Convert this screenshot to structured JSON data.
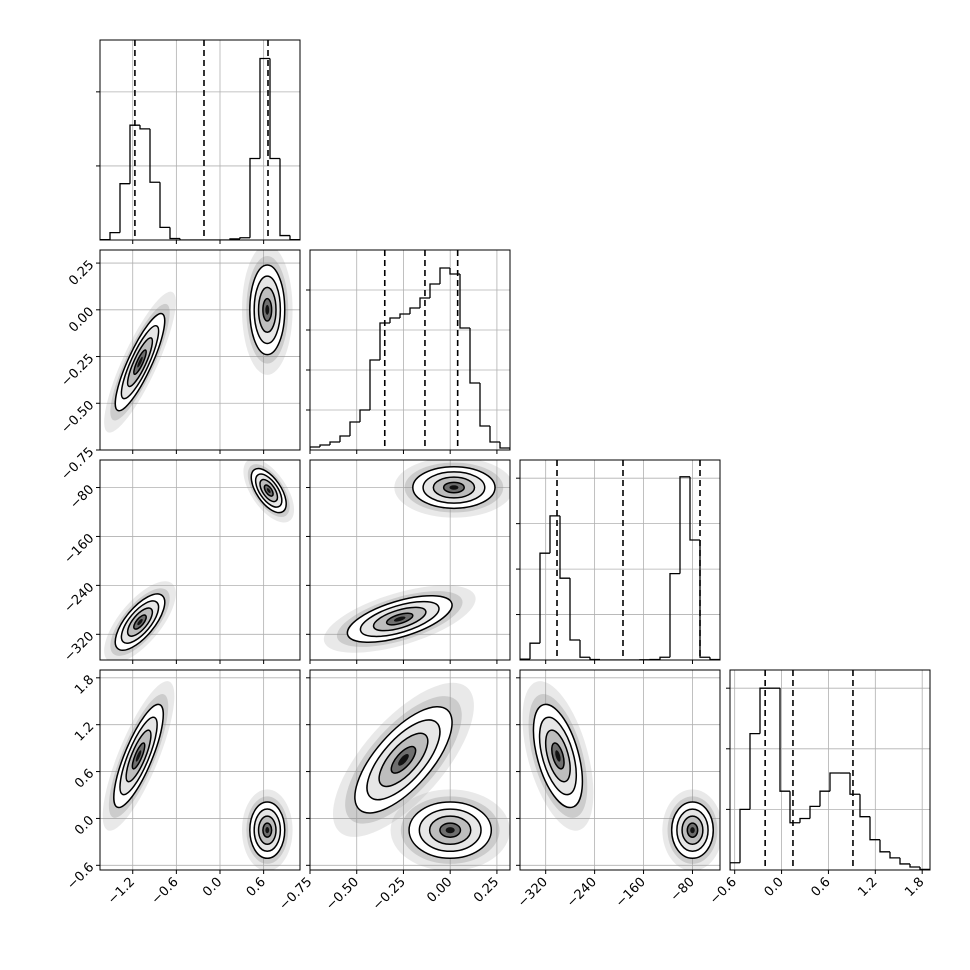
{
  "chart_data": {
    "type": "corner",
    "params": [
      {
        "lim": [
          -1.65,
          1.1
        ],
        "ticks": [
          {
            "value": -1.2,
            "label": "−1.2"
          },
          {
            "value": -0.6,
            "label": "−0.6"
          },
          {
            "value": 0.0,
            "label": "0.0"
          },
          {
            "value": 0.6,
            "label": "0.6"
          }
        ],
        "hist": {
          "bins": [
            -1.65,
            -1.5125,
            -1.375,
            -1.2375,
            -1.1,
            -0.9625,
            -0.825,
            -0.6875,
            -0.55,
            -0.4125,
            -0.275,
            -0.1375,
            0,
            0.1375,
            0.275,
            0.4125,
            0.55,
            0.6875,
            0.825,
            0.9625,
            1.1
          ],
          "counts": [
            5,
            100,
            760,
            1550,
            1500,
            780,
            170,
            20,
            0,
            0,
            0,
            0,
            0,
            15,
            30,
            1100,
            2450,
            1100,
            60,
            5
          ],
          "ylim": [
            0,
            2700
          ],
          "yticks": [
            1000,
            2000
          ]
        },
        "quantiles": [
          -1.17,
          -0.22,
          0.66
        ]
      },
      {
        "lim": [
          -0.75,
          0.32
        ],
        "ticks": [
          {
            "value": -0.75,
            "label": "−0.75"
          },
          {
            "value": -0.5,
            "label": "−0.50"
          },
          {
            "value": -0.25,
            "label": "−0.25"
          },
          {
            "value": 0.0,
            "label": "0.00"
          },
          {
            "value": 0.25,
            "label": "0.25"
          }
        ],
        "hist": {
          "bins": [
            -0.75,
            -0.6965,
            -0.643,
            -0.5895,
            -0.536,
            -0.4825,
            -0.429,
            -0.3755,
            -0.322,
            -0.2685,
            -0.215,
            -0.1615,
            -0.108,
            -0.0545,
            -0.001,
            0.0525,
            0.106,
            0.1595,
            0.213,
            0.2665,
            0.32
          ],
          "counts": [
            15,
            25,
            40,
            70,
            140,
            200,
            450,
            635,
            660,
            680,
            710,
            760,
            830,
            910,
            880,
            610,
            335,
            120,
            40,
            10
          ],
          "ylim": [
            0,
            1000
          ],
          "yticks": [
            200,
            400,
            600,
            800
          ]
        },
        "quantiles": [
          -0.35,
          -0.135,
          0.04
        ]
      },
      {
        "lim": [
          -362,
          -35
        ],
        "ticks": [
          {
            "value": -320,
            "label": "−320"
          },
          {
            "value": -240,
            "label": "−240"
          },
          {
            "value": -160,
            "label": "−160"
          },
          {
            "value": -80,
            "label": "−80"
          }
        ],
        "hist": {
          "bins": [
            -362,
            -345.65,
            -329.3,
            -312.95,
            -296.6,
            -280.25,
            -263.9,
            -247.55,
            -231.2,
            -214.85,
            -198.5,
            -182.15,
            -165.8,
            -149.45,
            -133.1,
            -116.75,
            -100.4,
            -84.05,
            -67.7,
            -51.35,
            -35
          ],
          "counts": [
            20,
            370,
            2350,
            3170,
            1800,
            440,
            60,
            10,
            0,
            0,
            0,
            0,
            5,
            10,
            60,
            1900,
            4030,
            2640,
            60,
            10
          ],
          "ylim": [
            0,
            4400
          ],
          "yticks": [
            1000,
            2000,
            3000,
            4000
          ]
        },
        "quantiles": [
          -301.5,
          -193.6,
          -67.7
        ]
      },
      {
        "lim": [
          -0.66,
          1.9
        ],
        "ticks": [
          {
            "value": -0.6,
            "label": "−0.6"
          },
          {
            "value": 0.0,
            "label": "0.0"
          },
          {
            "value": 0.6,
            "label": "0.6"
          },
          {
            "value": 1.2,
            "label": "1.2"
          },
          {
            "value": 1.8,
            "label": "1.8"
          }
        ],
        "hist": {
          "bins": [
            -0.66,
            -0.532,
            -0.404,
            -0.276,
            -0.148,
            -0.02,
            0.108,
            0.236,
            0.364,
            0.492,
            0.62,
            0.748,
            0.876,
            1.004,
            1.132,
            1.26,
            1.388,
            1.516,
            1.644,
            1.772,
            1.9
          ],
          "counts": [
            120,
            1000,
            2250,
            3000,
            3000,
            1300,
            780,
            850,
            1050,
            1300,
            1600,
            1600,
            1250,
            880,
            500,
            300,
            200,
            100,
            50,
            10
          ],
          "ylim": [
            0,
            3300
          ],
          "yticks": [
            1000,
            2000,
            3000
          ]
        },
        "quantiles": [
          -0.21,
          0.146,
          0.914
        ]
      }
    ],
    "panels": [
      {
        "col": 0,
        "row": 1,
        "blobs": [
          {
            "x": -1.1,
            "y": -0.28,
            "sx": 0.17,
            "sy": 0.13,
            "rho": 0.85
          },
          {
            "x": 0.65,
            "y": 0.0,
            "sx": 0.12,
            "sy": 0.12,
            "rho": 0
          }
        ]
      },
      {
        "col": 0,
        "row": 2,
        "blobs": [
          {
            "x": -1.1,
            "y": -300,
            "sx": 0.17,
            "sy": 23,
            "rho": 0.7
          },
          {
            "x": 0.67,
            "y": -85,
            "sx": 0.12,
            "sy": 18,
            "rho": -0.6
          }
        ]
      },
      {
        "col": 0,
        "row": 3,
        "blobs": [
          {
            "x": -1.12,
            "y": 0.8,
            "sx": 0.17,
            "sy": 0.33,
            "rho": 0.8
          },
          {
            "x": 0.65,
            "y": -0.15,
            "sx": 0.12,
            "sy": 0.18,
            "rho": 0
          }
        ]
      },
      {
        "col": 1,
        "row": 2,
        "blobs": [
          {
            "x": -0.27,
            "y": -295,
            "sx": 0.14,
            "sy": 19,
            "rho": 0.6
          },
          {
            "x": 0.02,
            "y": -80,
            "sx": 0.11,
            "sy": 17,
            "rho": 0
          }
        ]
      },
      {
        "col": 1,
        "row": 3,
        "blobs": [
          {
            "x": -0.25,
            "y": 0.75,
            "sx": 0.13,
            "sy": 0.34,
            "rho": 0.7
          },
          {
            "x": 0.0,
            "y": -0.15,
            "sx": 0.11,
            "sy": 0.18,
            "rho": 0
          }
        ]
      },
      {
        "col": 2,
        "row": 3,
        "blobs": [
          {
            "x": -300,
            "y": 0.8,
            "sx": 20,
            "sy": 0.33,
            "rho": -0.5
          },
          {
            "x": -80,
            "y": -0.15,
            "sx": 17,
            "sy": 0.18,
            "rho": 0
          }
        ]
      }
    ]
  }
}
